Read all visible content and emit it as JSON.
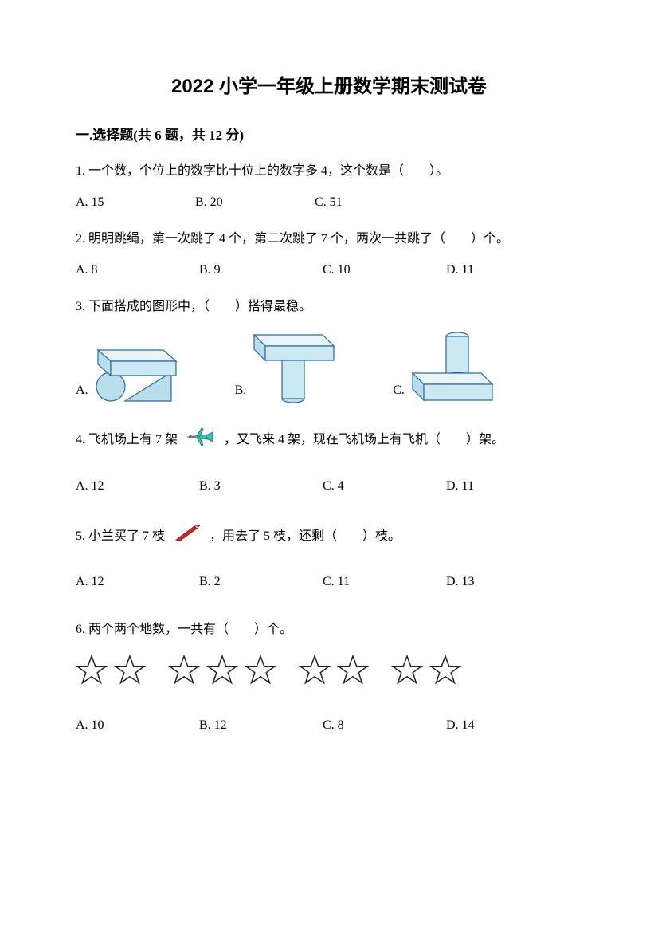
{
  "title": "2022 小学一年级上册数学期末测试卷",
  "section": "一.选择题(共 6 题，共 12 分)",
  "q1": {
    "stem": "1. 一个数，个位上的数字比十位上的数字多 4，这个数是（　　）。",
    "optA": "A. 15",
    "optB": "B. 20",
    "optC": "C. 51"
  },
  "q2": {
    "stem": "2. 明明跳绳，第一次跳了 4 个，第二次跳了 7 个，两次一共跳了（　　）个。",
    "optA": "A.  8",
    "optB": "B.  9",
    "optC": "C.  10",
    "optD": "D.  11"
  },
  "q3": {
    "stem": "3. 下面搭成的图形中，（　　）搭得最稳。",
    "optA": "A.",
    "optB": "B.",
    "optC": "C."
  },
  "q4": {
    "stemA": "4. 飞机场上有 7 架",
    "stemB": "，又飞来 4 架，现在飞机场上有飞机（　　）架。",
    "optA": "A. 12",
    "optB": "B. 3",
    "optC": "C. 4",
    "optD": "D. 11"
  },
  "q5": {
    "stemA": "5. 小兰买了 7 枝",
    "stemB": "，用去了 5 枝，还剩（　　）枝。",
    "optA": "A. 12",
    "optB": "B. 2",
    "optC": "C. 11",
    "optD": "D. 13"
  },
  "q6": {
    "stem": "6. 两个两个地数，一共有（　　）个。",
    "starCount": 9,
    "optA": "A. 10",
    "optB": "B. 12",
    "optC": "C. 8",
    "optD": "D. 14"
  },
  "colors": {
    "text": "#000000",
    "shapeFill": "#b9ddea",
    "shapeStroke": "#2a6aa0",
    "planeBody": "#3fbfae",
    "planeAccent": "#d8432a",
    "pencilBody": "#d02a2a",
    "starStroke": "#222222"
  }
}
